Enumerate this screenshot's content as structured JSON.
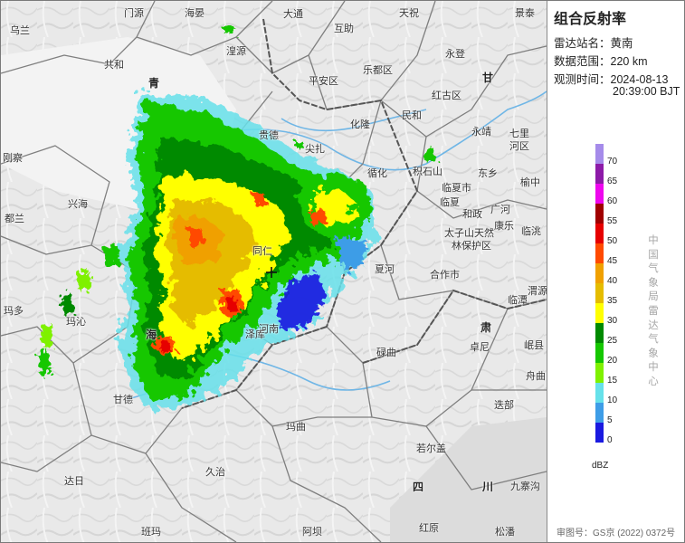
{
  "panel": {
    "title": "组合反射率",
    "station_label": "雷达站名：",
    "station_value": "黄南",
    "range_label": "数据范围：",
    "range_value": "220 km",
    "time_label": "观测时间：",
    "time_date": "2024-08-13",
    "time_clock": "20:39:00 BJT",
    "unit": "dBZ",
    "legend_ticks": [
      "70",
      "65",
      "60",
      "55",
      "50",
      "45",
      "40",
      "35",
      "30",
      "25",
      "20",
      "15",
      "10",
      "5",
      "0"
    ],
    "legend_colors": [
      "#a58bea",
      "#8d1aa8",
      "#ee06ee",
      "#a00000",
      "#e60000",
      "#ff4a00",
      "#f0a000",
      "#e5bc00",
      "#ffff00",
      "#008a00",
      "#15c700",
      "#7ff100",
      "#66e1ea",
      "#3e9de7",
      "#1a1ae0"
    ],
    "vertical_text": [
      "中",
      "国",
      "气",
      "象",
      "局",
      "雷",
      "达",
      "气",
      "象",
      "中",
      "心"
    ],
    "approval": "审图号：GS京 (2022) 0372号"
  },
  "map": {
    "places": [
      {
        "id": "wulan",
        "text": "乌兰",
        "type": "place"
      },
      {
        "id": "gonghe",
        "text": "共和",
        "type": "place"
      },
      {
        "id": "haiyan",
        "text": "海晏",
        "type": "place"
      },
      {
        "id": "datong",
        "text": "大通",
        "type": "place"
      },
      {
        "id": "tianzhu",
        "text": "天祝",
        "type": "place"
      },
      {
        "id": "jingtai",
        "text": "景泰",
        "type": "place"
      },
      {
        "id": "huangyuan",
        "text": "湟源",
        "type": "place"
      },
      {
        "id": "huzhu",
        "text": "互助",
        "type": "place"
      },
      {
        "id": "yongdeng",
        "text": "永登",
        "type": "place"
      },
      {
        "id": "pingan",
        "text": "平安区",
        "type": "place"
      },
      {
        "id": "ledu",
        "text": "乐都区",
        "type": "place"
      },
      {
        "id": "yongjing",
        "text": "永靖",
        "type": "place"
      },
      {
        "id": "hualong",
        "text": "化隆",
        "type": "place"
      },
      {
        "id": "minhe",
        "text": "民和",
        "type": "place"
      },
      {
        "id": "hongguqu",
        "text": "红古区",
        "type": "place"
      },
      {
        "id": "guide",
        "text": "贵德",
        "type": "place"
      },
      {
        "id": "jianzha",
        "text": "尖扎",
        "type": "place"
      },
      {
        "id": "xunhua",
        "text": "循化",
        "type": "place"
      },
      {
        "id": "jishishan",
        "text": "积石山",
        "type": "place"
      },
      {
        "id": "linxia",
        "text": "临夏市",
        "type": "place"
      },
      {
        "id": "linxiaxian",
        "text": "临夏",
        "type": "place"
      },
      {
        "id": "hezheng",
        "text": "和政",
        "type": "place"
      },
      {
        "id": "guanghe",
        "text": "广河",
        "type": "place"
      },
      {
        "id": "dongxiang",
        "text": "东乡",
        "type": "place"
      },
      {
        "id": "kangle",
        "text": "康乐",
        "type": "place"
      },
      {
        "id": "taizishan",
        "text": "太子山天然",
        "type": "place"
      },
      {
        "id": "taizishan2",
        "text": "林保护区",
        "type": "place"
      },
      {
        "id": "qilihe",
        "text": "七里",
        "type": "place"
      },
      {
        "id": "qilihe2",
        "text": "河区",
        "type": "place"
      },
      {
        "id": "yuzhong",
        "text": "榆中",
        "type": "place"
      },
      {
        "id": "lintao",
        "text": "临洮",
        "type": "place"
      },
      {
        "id": "weiyuan",
        "text": "渭源",
        "type": "place"
      },
      {
        "id": "xiahe",
        "text": "夏河",
        "type": "place"
      },
      {
        "id": "hezuo",
        "text": "合作市",
        "type": "place"
      },
      {
        "id": "zhuoni",
        "text": "卓尼",
        "type": "place"
      },
      {
        "id": "lintan",
        "text": "临潭",
        "type": "place"
      },
      {
        "id": "min",
        "text": "岷县",
        "type": "place"
      },
      {
        "id": "zeku",
        "text": "泽库",
        "type": "place"
      },
      {
        "id": "tongren",
        "text": "同仁",
        "type": "place"
      },
      {
        "id": "henan",
        "text": "河南",
        "type": "place"
      },
      {
        "id": "luqu",
        "text": "碌曲",
        "type": "place"
      },
      {
        "id": "maqu",
        "text": "玛曲",
        "type": "place"
      },
      {
        "id": "diebu",
        "text": "迭部",
        "type": "place"
      },
      {
        "id": "zhouqu",
        "text": "舟曲",
        "type": "place"
      },
      {
        "id": "xinghai",
        "text": "兴海",
        "type": "place"
      },
      {
        "id": "maduo",
        "text": "玛多",
        "type": "place"
      },
      {
        "id": "maqin",
        "text": "玛沁",
        "type": "place"
      },
      {
        "id": "gande",
        "text": "甘德",
        "type": "place"
      },
      {
        "id": "jiuzhi",
        "text": "久治",
        "type": "place"
      },
      {
        "id": "banma",
        "text": "班玛",
        "type": "place"
      },
      {
        "id": "aba",
        "text": "阿坝",
        "type": "place"
      },
      {
        "id": "hongyuan",
        "text": "红原",
        "type": "place"
      },
      {
        "id": "ruoergai",
        "text": "若尔盖",
        "type": "place"
      },
      {
        "id": "songpan",
        "text": "松潘",
        "type": "place"
      },
      {
        "id": "jiuzhaigou",
        "text": "九寨沟",
        "type": "place"
      },
      {
        "id": "dari",
        "text": "达日",
        "type": "place"
      },
      {
        "id": "dulan",
        "text": "都兰",
        "type": "place"
      },
      {
        "id": "menyuan",
        "text": "门源",
        "type": "place"
      },
      {
        "id": "gangcha",
        "text": "刚察",
        "type": "place"
      }
    ],
    "provinces": [
      {
        "id": "qing",
        "text": "青"
      },
      {
        "id": "hai",
        "text": "海"
      },
      {
        "id": "gan",
        "text": "甘"
      },
      {
        "id": "su",
        "text": "肃"
      },
      {
        "id": "si",
        "text": "四"
      },
      {
        "id": "chuan",
        "text": "川"
      }
    ]
  }
}
